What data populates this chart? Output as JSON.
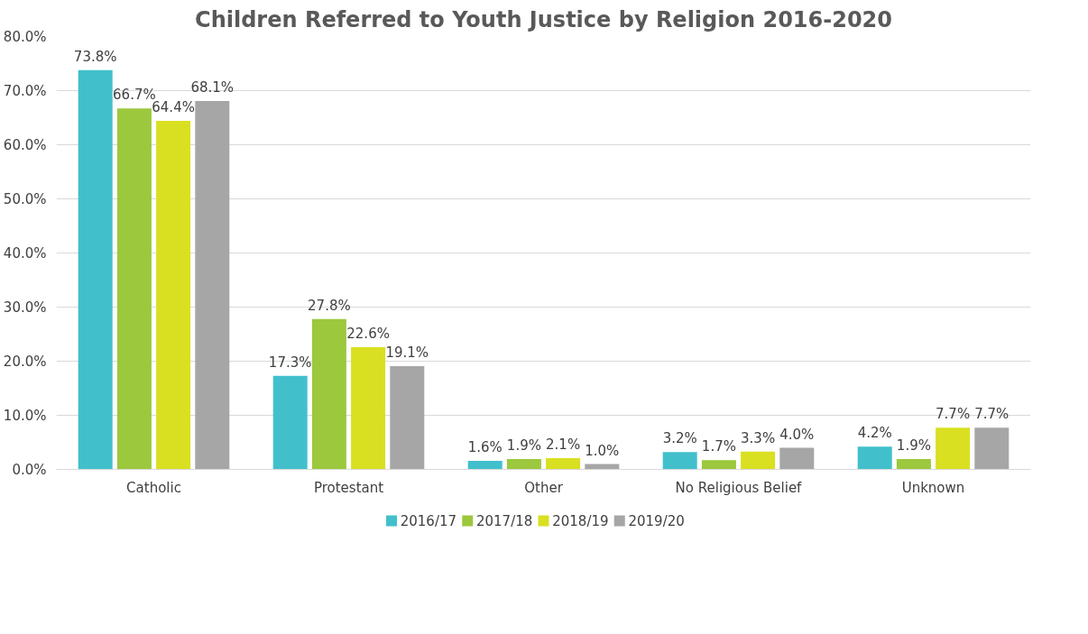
{
  "chart_data": {
    "type": "bar",
    "title": "Children Referred to Youth Justice by Religion 2016-2020",
    "categories": [
      "Catholic",
      "Protestant",
      "Other",
      "No Religious Belief",
      "Unknown"
    ],
    "series": [
      {
        "name": "2016/17",
        "color": "#41c0cc",
        "values": [
          73.8,
          17.3,
          1.6,
          3.2,
          4.2
        ],
        "value_labels": [
          "73.8%",
          "17.3%",
          "1.6%",
          "3.2%",
          "4.2%"
        ]
      },
      {
        "name": "2017/18",
        "color": "#9bc83c",
        "values": [
          66.7,
          27.8,
          1.9,
          1.7,
          1.9
        ],
        "value_labels": [
          "66.7%",
          "27.8%",
          "1.9%",
          "1.7%",
          "1.9%"
        ]
      },
      {
        "name": "2018/19",
        "color": "#d9e021",
        "values": [
          64.4,
          22.6,
          2.1,
          3.3,
          7.7
        ],
        "value_labels": [
          "64.4%",
          "22.6%",
          "2.1%",
          "3.3%",
          "7.7%"
        ]
      },
      {
        "name": "2019/20",
        "color": "#a6a6a6",
        "values": [
          68.1,
          19.1,
          1.0,
          4.0,
          7.7
        ],
        "value_labels": [
          "68.1%",
          "19.1%",
          "1.0%",
          "4.0%",
          "7.7%"
        ]
      }
    ],
    "ylim": [
      0,
      80
    ],
    "yticks": [
      {
        "value": 0,
        "label": "0.0%"
      },
      {
        "value": 10,
        "label": "10.0%"
      },
      {
        "value": 20,
        "label": "20.0%"
      },
      {
        "value": 30,
        "label": "30.0%"
      },
      {
        "value": 40,
        "label": "40.0%"
      },
      {
        "value": 50,
        "label": "50.0%"
      },
      {
        "value": 60,
        "label": "60.0%"
      },
      {
        "value": 70,
        "label": "70.0%"
      },
      {
        "value": 80,
        "label": "80.0%"
      }
    ],
    "grid": "y",
    "legend": "bottom"
  }
}
